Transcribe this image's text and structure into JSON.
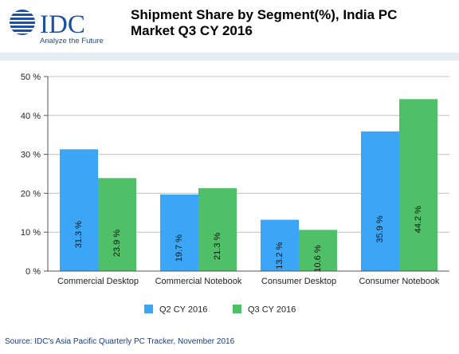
{
  "header": {
    "logo_text": "IDC",
    "logo_tagline": "Analyze the Future",
    "title_line1": "Shipment Share by Segment(%), India PC",
    "title_line2": "Market Q3 CY 2016"
  },
  "colors": {
    "q2": "#3aa6f5",
    "q3": "#4fc067",
    "logo_blue": "#1d4fa3",
    "source_text": "#1a3a8c"
  },
  "chart_data": {
    "type": "bar",
    "title": "Shipment Share by Segment(%), India PC Market Q3 CY 2016",
    "categories": [
      "Commercial Desktop",
      "Commercial Notebook",
      "Consumer Desktop",
      "Consumer Notebook"
    ],
    "series": [
      {
        "name": "Q2 CY 2016",
        "values": [
          31.3,
          19.7,
          13.2,
          35.9
        ],
        "labels": [
          "31.3 %",
          "19.7 %",
          "13.2 %",
          "35.9 %"
        ]
      },
      {
        "name": "Q3 CY 2016",
        "values": [
          23.9,
          21.3,
          10.6,
          44.2
        ],
        "labels": [
          "23.9 %",
          "21.3 %",
          "10.6 %",
          "44.2 %"
        ]
      }
    ],
    "ylim": [
      0,
      50
    ],
    "yticks": [
      0,
      10,
      20,
      30,
      40,
      50
    ],
    "ytick_labels": [
      "0 %",
      "10 %",
      "20 %",
      "30 %",
      "40 %",
      "50 %"
    ],
    "grid": true,
    "legend": "bottom-center"
  },
  "source": "Source: IDC's Asia Pacific Quarterly PC Tracker, November 2016"
}
